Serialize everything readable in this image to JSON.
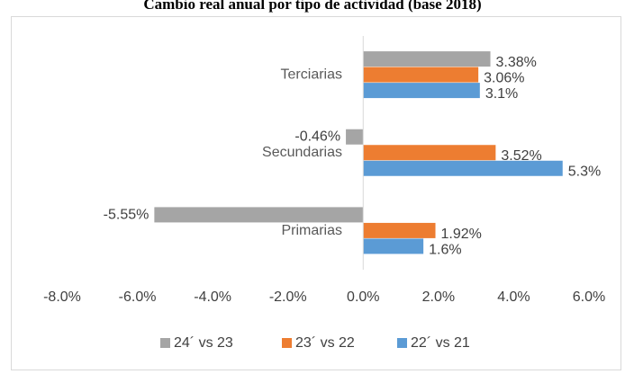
{
  "chart_data": {
    "type": "hbar",
    "title": "Cambio real anual por tipo de actividad (base 2018)",
    "categories": [
      "Terciarias",
      "Secundarias",
      "Primarias"
    ],
    "series": [
      {
        "name": "24´ vs 23",
        "color": "#a5a5a5",
        "values": [
          3.38,
          -0.46,
          -5.55
        ],
        "value_labels": [
          "3.38%",
          "-0.46%",
          "-5.55%"
        ]
      },
      {
        "name": "23´ vs 22",
        "color": "#ed7d31",
        "values": [
          3.06,
          3.52,
          1.92
        ],
        "value_labels": [
          "3.06%",
          "3.52%",
          "1.92%"
        ]
      },
      {
        "name": "22´ vs 21",
        "color": "#5b9bd5",
        "values": [
          3.1,
          5.3,
          1.6
        ],
        "value_labels": [
          "3.1%",
          "5.3%",
          "1.6%"
        ]
      }
    ],
    "xlim": [
      -8,
      6
    ],
    "xticks": [
      {
        "value": -8,
        "label": "-8.0%"
      },
      {
        "value": -6,
        "label": "-6.0%"
      },
      {
        "value": -4,
        "label": "-4.0%"
      },
      {
        "value": -2,
        "label": "-2.0%"
      },
      {
        "value": 0,
        "label": "0.0%"
      },
      {
        "value": 2,
        "label": "2.0%"
      },
      {
        "value": 4,
        "label": "4.0%"
      },
      {
        "value": 6,
        "label": "6.0%"
      }
    ],
    "legend": "bottom"
  }
}
